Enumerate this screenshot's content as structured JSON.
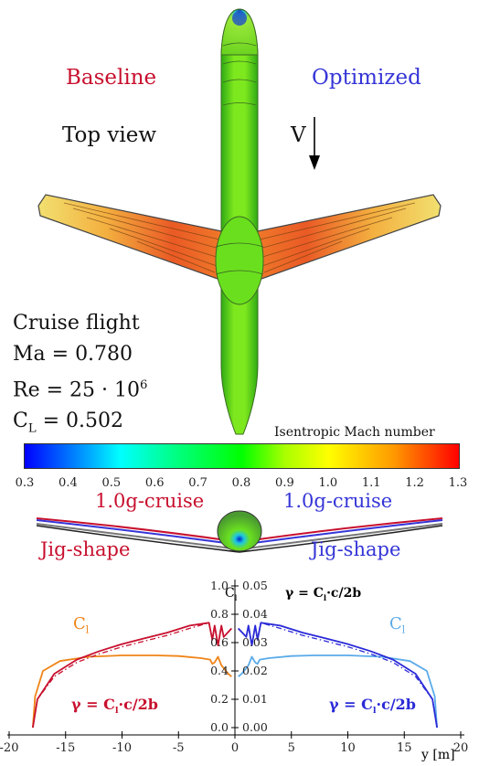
{
  "labels": {
    "baseline": "Baseline",
    "optimized": "Optimized",
    "top_view": "Top view",
    "velocity": "V",
    "cruise_left": "1.0g-cruise",
    "cruise_right": "1.0g-cruise",
    "jig_left": "Jig-shape",
    "jig_right": "Jig-shape"
  },
  "conditions": {
    "line1": "Cruise flight",
    "line2": "Ma = 0.780",
    "re_prefix": "Re = 25 · 10",
    "re_exp": "6",
    "cl_prefix": "C",
    "cl_sub": "L",
    "cl_value": " = 0.502"
  },
  "colorbar": {
    "title": "Isentropic Mach number",
    "ticks": [
      "0.3",
      "0.4",
      "0.5",
      "0.6",
      "0.7",
      "0.8",
      "0.9",
      "1.0",
      "1.1",
      "1.2",
      "1.3"
    ],
    "min": 0.3,
    "max": 1.3,
    "colors": [
      "#0000ff",
      "#00ffff",
      "#00ff00",
      "#ffff00",
      "#ff0000"
    ]
  },
  "chart_data": {
    "type": "line",
    "xlabel": "y [m]",
    "xlim": [
      -20,
      20
    ],
    "xticks": [
      "-20",
      "-15",
      "-10",
      "-5",
      "0",
      "5",
      "10",
      "15",
      "20"
    ],
    "cl_axis": {
      "label": "C",
      "label_sub": "l",
      "ticks": [
        "0.0",
        "0.2",
        "0.4",
        "0.6",
        "0.8",
        "1.0"
      ]
    },
    "gamma_axis": {
      "label": "γ = C",
      "label_sub": "l",
      "label_tail": "·c/2b",
      "ticks": [
        "0.00",
        "0.01",
        "0.02",
        "0.03",
        "0.04",
        "0.05"
      ]
    },
    "series_labels": {
      "cl_left": "C",
      "cl_right": "C",
      "cl_sub": "l",
      "gamma_left_prefix": "γ = C",
      "gamma_right_prefix": "γ = C",
      "gamma_tail": "·c/2b"
    },
    "series": [
      {
        "name": "Cl baseline",
        "color": "#f08418",
        "x": [
          -17.9,
          -17.7,
          -17.0,
          -15.5,
          -13,
          -10,
          -7,
          -5,
          -3,
          -2.2,
          -2.0,
          -1.8,
          -1.5,
          -1.2,
          -1.0,
          -0.6,
          -0.3
        ],
        "y": [
          0.0,
          0.22,
          0.4,
          0.47,
          0.5,
          0.51,
          0.51,
          0.505,
          0.49,
          0.48,
          0.45,
          0.46,
          0.5,
          0.44,
          0.42,
          0.38,
          0.36
        ]
      },
      {
        "name": "Cl optimized",
        "color": "#5aabea",
        "x": [
          0.3,
          0.6,
          1.0,
          1.2,
          1.5,
          1.8,
          2.0,
          2.2,
          3,
          5,
          7,
          10,
          13,
          15.5,
          17.0,
          17.7,
          17.9
        ],
        "y": [
          0.36,
          0.38,
          0.42,
          0.44,
          0.5,
          0.46,
          0.45,
          0.48,
          0.49,
          0.505,
          0.51,
          0.51,
          0.5,
          0.47,
          0.4,
          0.22,
          0.0
        ]
      },
      {
        "name": "gamma baseline",
        "color": "#c8102e",
        "x": [
          -17.9,
          -17.5,
          -16,
          -14,
          -12,
          -10,
          -8,
          -6,
          -4,
          -2.3,
          -2.0,
          -1.8,
          -1.5,
          -1.2,
          -1.0,
          -0.3
        ],
        "y": [
          0.0,
          0.01,
          0.019,
          0.024,
          0.027,
          0.0295,
          0.0315,
          0.0335,
          0.036,
          0.037,
          0.031,
          0.036,
          0.029,
          0.036,
          0.032,
          0.035
        ]
      },
      {
        "name": "gamma optimized",
        "color": "#2a2ad8",
        "x": [
          0.3,
          1.0,
          1.2,
          1.5,
          1.8,
          2.0,
          2.3,
          4,
          6,
          8,
          10,
          12,
          14,
          16,
          17.5,
          17.9
        ],
        "y": [
          0.035,
          0.032,
          0.036,
          0.029,
          0.036,
          0.031,
          0.037,
          0.036,
          0.0335,
          0.0315,
          0.0295,
          0.027,
          0.024,
          0.019,
          0.01,
          0.0
        ]
      }
    ]
  }
}
